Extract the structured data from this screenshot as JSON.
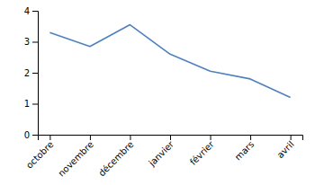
{
  "chart_data": {
    "type": "line",
    "categories": [
      "octobre",
      "novembre",
      "décembre",
      "janvier",
      "février",
      "mars",
      "avril"
    ],
    "values": [
      3.3,
      2.85,
      3.55,
      2.6,
      2.05,
      1.8,
      1.2
    ],
    "color": "#4f81bd",
    "ylim": [
      0,
      4
    ],
    "yticks": [
      0,
      1,
      2,
      3,
      4
    ],
    "grid": false
  }
}
